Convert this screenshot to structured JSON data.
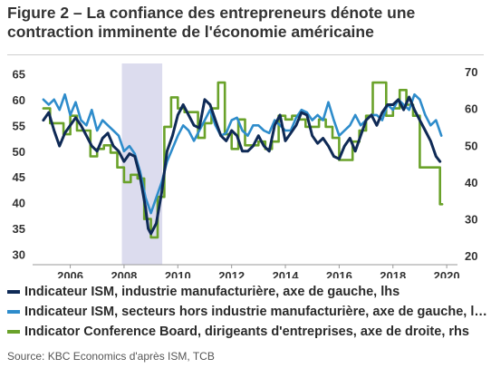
{
  "title": "Figure 2 – La confiance des entrepreneurs dénote une contraction imminente de l'économie américaine",
  "source": "Source: KBC Economics d'après ISM, TCB",
  "chart_data": {
    "type": "line",
    "title": "Figure 2 – La confiance des entrepreneurs dénote une contraction imminente de l'économie américaine",
    "x_ticks": [
      2006,
      2008,
      2010,
      2012,
      2014,
      2016,
      2018,
      2020
    ],
    "xlim": [
      2004.6,
      2020.4
    ],
    "left_axis": {
      "ylim": [
        28,
        67
      ],
      "ticks": [
        30,
        35,
        40,
        45,
        50,
        55,
        60,
        65
      ]
    },
    "right_axis": {
      "ylim": [
        17.6,
        72.2
      ],
      "ticks": [
        20,
        30,
        40,
        50,
        60,
        70
      ]
    },
    "recession": [
      2007.92,
      2009.42
    ],
    "grid": false,
    "legend_position": "bottom",
    "series": [
      {
        "name": "Indicateur ISM, industrie manufacturière, axe de gauche, lhs",
        "axis": "left",
        "color": "#0f2a56",
        "x": [
          2005.0,
          2005.2,
          2005.4,
          2005.6,
          2005.8,
          2006.0,
          2006.2,
          2006.4,
          2006.6,
          2006.8,
          2007.0,
          2007.2,
          2007.4,
          2007.6,
          2007.8,
          2008.0,
          2008.2,
          2008.4,
          2008.6,
          2008.8,
          2008.9,
          2009.0,
          2009.2,
          2009.4,
          2009.6,
          2009.8,
          2010.0,
          2010.2,
          2010.4,
          2010.6,
          2010.8,
          2011.0,
          2011.2,
          2011.4,
          2011.6,
          2011.8,
          2012.0,
          2012.2,
          2012.4,
          2012.6,
          2012.8,
          2013.0,
          2013.2,
          2013.4,
          2013.6,
          2013.8,
          2014.0,
          2014.2,
          2014.4,
          2014.6,
          2014.8,
          2015.0,
          2015.2,
          2015.4,
          2015.6,
          2015.8,
          2016.0,
          2016.2,
          2016.4,
          2016.6,
          2016.8,
          2017.0,
          2017.2,
          2017.4,
          2017.6,
          2017.8,
          2018.0,
          2018.2,
          2018.4,
          2018.6,
          2018.8,
          2019.0,
          2019.2,
          2019.4,
          2019.6,
          2019.75
        ],
        "values": [
          56,
          57.5,
          54,
          51,
          53.5,
          55,
          56.5,
          55,
          53,
          51,
          50,
          52.5,
          53.5,
          51,
          50,
          48,
          49.5,
          49,
          45,
          39,
          35,
          34,
          36,
          42,
          50,
          53,
          57,
          59,
          57,
          55,
          54.5,
          60,
          59,
          56,
          53,
          52,
          54,
          53,
          50,
          50,
          51,
          53,
          51,
          50,
          55,
          57,
          52,
          53.5,
          55,
          57.5,
          57,
          53,
          51.5,
          52.5,
          51,
          49,
          48.5,
          51,
          52.5,
          50,
          53,
          56,
          57,
          55,
          57.5,
          59,
          59,
          60,
          58,
          60.5,
          58,
          56,
          54,
          52,
          49,
          48
        ]
      },
      {
        "name": "Indicateur ISM, secteurs hors industrie manufacturière, axe de gauche, lhs",
        "axis": "left",
        "color": "#2e8ccb",
        "x": [
          2005.0,
          2005.2,
          2005.4,
          2005.6,
          2005.8,
          2006.0,
          2006.2,
          2006.4,
          2006.6,
          2006.8,
          2007.0,
          2007.2,
          2007.4,
          2007.6,
          2007.8,
          2008.0,
          2008.2,
          2008.4,
          2008.6,
          2008.8,
          2009.0,
          2009.2,
          2009.4,
          2009.6,
          2009.8,
          2010.0,
          2010.2,
          2010.4,
          2010.6,
          2010.8,
          2011.0,
          2011.2,
          2011.4,
          2011.6,
          2011.8,
          2012.0,
          2012.2,
          2012.4,
          2012.6,
          2012.8,
          2013.0,
          2013.2,
          2013.4,
          2013.6,
          2013.8,
          2014.0,
          2014.2,
          2014.4,
          2014.6,
          2014.8,
          2015.0,
          2015.2,
          2015.4,
          2015.6,
          2015.8,
          2016.0,
          2016.2,
          2016.4,
          2016.6,
          2016.8,
          2017.0,
          2017.2,
          2017.4,
          2017.6,
          2017.8,
          2018.0,
          2018.2,
          2018.4,
          2018.6,
          2018.8,
          2019.0,
          2019.2,
          2019.4,
          2019.6,
          2019.8
        ],
        "values": [
          60,
          59,
          60,
          58,
          61,
          57,
          59.5,
          56,
          55,
          58,
          54,
          56,
          55,
          54,
          53,
          50,
          51,
          49.5,
          46,
          41,
          38,
          41,
          44,
          48,
          50.5,
          53,
          55,
          54,
          52,
          54,
          56,
          58,
          55,
          53,
          53.5,
          56,
          56.5,
          54,
          53,
          55,
          55,
          54,
          53.5,
          56,
          55,
          54,
          54,
          56.5,
          58,
          57.5,
          56,
          57,
          56,
          59.5,
          56,
          53,
          54,
          55,
          57,
          55,
          56,
          57,
          57,
          56,
          59,
          58,
          60,
          59,
          58,
          61,
          60,
          57,
          55,
          56,
          53
        ]
      },
      {
        "name": "Indicator Conference Board, dirigeants d'entreprises, axe de droite, rhs",
        "axis": "right",
        "color": "#6aa22a",
        "x": [
          2005.0,
          2005.25,
          2005.5,
          2005.75,
          2006.0,
          2006.25,
          2006.5,
          2006.75,
          2007.0,
          2007.25,
          2007.5,
          2007.75,
          2008.0,
          2008.25,
          2008.5,
          2008.75,
          2009.0,
          2009.25,
          2009.5,
          2009.75,
          2010.0,
          2010.25,
          2010.5,
          2010.75,
          2011.0,
          2011.25,
          2011.5,
          2011.75,
          2012.0,
          2012.25,
          2012.5,
          2012.75,
          2013.0,
          2013.25,
          2013.5,
          2013.75,
          2014.0,
          2014.25,
          2014.5,
          2014.75,
          2015.0,
          2015.25,
          2015.5,
          2015.75,
          2016.0,
          2016.25,
          2016.5,
          2016.75,
          2017.0,
          2017.25,
          2017.5,
          2017.75,
          2018.0,
          2018.25,
          2018.5,
          2018.75,
          2019.0,
          2019.25,
          2019.5,
          2019.75
        ],
        "values": [
          60,
          56,
          56,
          53,
          58,
          54,
          54,
          47,
          49,
          50,
          48,
          44,
          40,
          42,
          41,
          30,
          25,
          36,
          55,
          63,
          60,
          59,
          59,
          52,
          56,
          60,
          67,
          53,
          49,
          57,
          50,
          50,
          51,
          49,
          51,
          58,
          57,
          58,
          57,
          55,
          55,
          57,
          55,
          52,
          46,
          46,
          51,
          54,
          58,
          67,
          67,
          58,
          60,
          65,
          61,
          58,
          44,
          44,
          44,
          34
        ]
      }
    ]
  },
  "legend": [
    {
      "label": "Indicateur ISM, industrie manufacturière, axe de gauche, lhs",
      "color": "#0f2a56"
    },
    {
      "label": "Indicateur ISM, secteurs hors industrie manufacturière, axe de gauche, lhs",
      "color": "#2e8ccb"
    },
    {
      "label": "Indicator Conference Board, dirigeants d'entreprises, axe de droite, rhs",
      "color": "#6aa22a"
    }
  ]
}
